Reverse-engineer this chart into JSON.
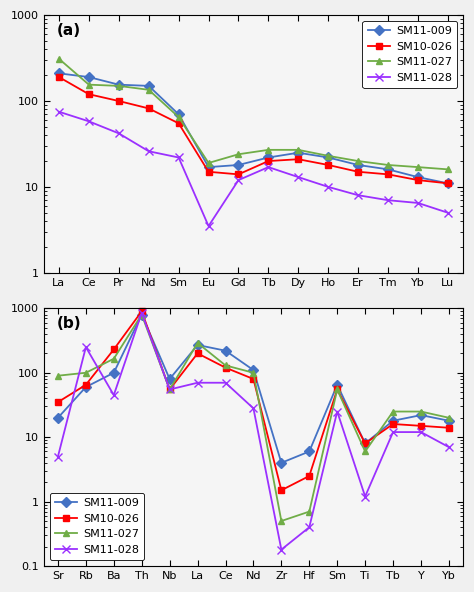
{
  "panel_a": {
    "x_labels": [
      "La",
      "Ce",
      "Pr",
      "Nd",
      "Sm",
      "Eu",
      "Gd",
      "Tb",
      "Dy",
      "Ho",
      "Er",
      "Tm",
      "Yb",
      "Lu"
    ],
    "series_order": [
      "SM11-009",
      "SM10-026",
      "SM11-027",
      "SM11-028"
    ],
    "series": {
      "SM11-009": {
        "color": "#4472C4",
        "marker": "D",
        "markersize": 5,
        "values": [
          210,
          190,
          155,
          150,
          70,
          17,
          18,
          22,
          25,
          22,
          18,
          16,
          13,
          11
        ]
      },
      "SM10-026": {
        "color": "#FF0000",
        "marker": "s",
        "markersize": 5,
        "values": [
          190,
          120,
          100,
          82,
          55,
          15,
          14,
          20,
          21,
          18,
          15,
          14,
          12,
          11
        ]
      },
      "SM11-027": {
        "color": "#70AD47",
        "marker": "^",
        "markersize": 5,
        "values": [
          310,
          155,
          150,
          135,
          65,
          19,
          24,
          27,
          27,
          23,
          20,
          18,
          17,
          16
        ]
      },
      "SM11-028": {
        "color": "#9B30FF",
        "marker": "x",
        "markersize": 6,
        "values": [
          75,
          58,
          42,
          26,
          22,
          3.5,
          12,
          17,
          13,
          10,
          8,
          7,
          6.5,
          5
        ]
      }
    },
    "ylim": [
      1,
      1000
    ],
    "yticks": [
      1,
      10,
      100,
      1000
    ],
    "yticklabels": [
      "1",
      "10",
      "100",
      "1000"
    ],
    "panel_label": "(a)",
    "legend_loc": "upper right"
  },
  "panel_b": {
    "x_labels": [
      "Sr",
      "Rb",
      "Ba",
      "Th",
      "Nb",
      "La",
      "Ce",
      "Nd",
      "Zr",
      "Hf",
      "Sm",
      "Ti",
      "Tb",
      "Y",
      "Yb"
    ],
    "series_order": [
      "SM11-009",
      "SM10-026",
      "SM11-027",
      "SM11-028"
    ],
    "series": {
      "SM11-009": {
        "color": "#4472C4",
        "marker": "D",
        "markersize": 5,
        "values": [
          20,
          60,
          100,
          800,
          80,
          270,
          220,
          110,
          4,
          6,
          65,
          8,
          18,
          22,
          18
        ]
      },
      "SM10-026": {
        "color": "#FF0000",
        "marker": "s",
        "markersize": 5,
        "values": [
          35,
          65,
          230,
          900,
          55,
          200,
          120,
          80,
          1.5,
          2.5,
          55,
          8,
          16,
          15,
          14
        ]
      },
      "SM11-027": {
        "color": "#70AD47",
        "marker": "^",
        "markersize": 5,
        "values": [
          90,
          100,
          165,
          800,
          55,
          290,
          130,
          100,
          0.5,
          0.7,
          55,
          6,
          25,
          25,
          20
        ]
      },
      "SM11-028": {
        "color": "#9B30FF",
        "marker": "x",
        "markersize": 6,
        "values": [
          5,
          250,
          45,
          850,
          55,
          70,
          70,
          28,
          0.18,
          0.4,
          25,
          1.2,
          12,
          12,
          7
        ]
      }
    },
    "ylim": [
      0.1,
      1000
    ],
    "yticks": [
      0.1,
      1,
      10,
      100,
      1000
    ],
    "yticklabels": [
      "0.1",
      "1",
      "10",
      "100",
      "1000"
    ],
    "panel_label": "(b)",
    "legend_loc": "lower left"
  },
  "fig_facecolor": "#f0f0f0",
  "axes_facecolor": "#f5f5f5",
  "linewidth": 1.3,
  "tick_fontsize": 8,
  "legend_fontsize": 8,
  "panel_label_fontsize": 11
}
